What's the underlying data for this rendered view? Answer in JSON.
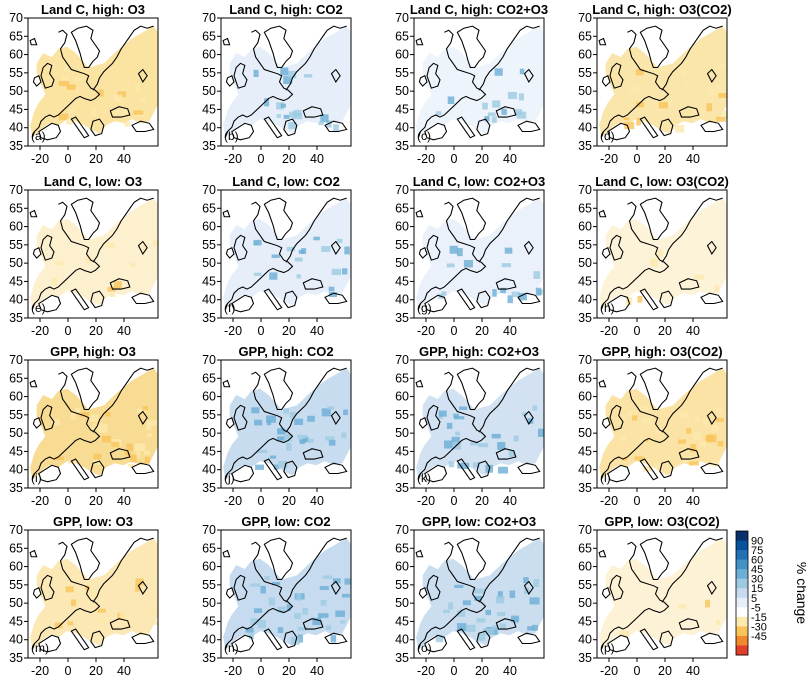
{
  "figure": {
    "panels": [
      {
        "title": "Land C, high: O3",
        "label": "(a)",
        "fill": "#fbe3a2",
        "intensity": 0.55
      },
      {
        "title": "Land C, high: CO2",
        "label": "(b)",
        "fill": "#e6eff9",
        "intensity": 0.45
      },
      {
        "title": "Land C, high: CO2+O3",
        "label": "(c)",
        "fill": "#eef4fb",
        "intensity": 0.35
      },
      {
        "title": "Land C, high: O3(CO2)",
        "label": "(d)",
        "fill": "#fae6aa",
        "intensity": 0.65
      },
      {
        "title": "Land C, low: O3",
        "label": "(e)",
        "fill": "#fcf0cf",
        "intensity": 0.25
      },
      {
        "title": "Land C, low: CO2",
        "label": "(f)",
        "fill": "#e6eff9",
        "intensity": 0.45
      },
      {
        "title": "Land C, low: CO2+O3",
        "label": "(g)",
        "fill": "#eaf1fa",
        "intensity": 0.4
      },
      {
        "title": "Land C, low: O3(CO2)",
        "label": "(h)",
        "fill": "#fdf3d9",
        "intensity": 0.15
      },
      {
        "title": "GPP, high: O3",
        "label": "(i)",
        "fill": "#f8dc94",
        "intensity": 0.8
      },
      {
        "title": "GPP, high: CO2",
        "label": "(j)",
        "fill": "#c8dcef",
        "intensity": 0.75
      },
      {
        "title": "GPP, high: CO2+O3",
        "label": "(k)",
        "fill": "#d2e2f2",
        "intensity": 0.65
      },
      {
        "title": "GPP, high: O3(CO2)",
        "label": "(l)",
        "fill": "#fae3a4",
        "intensity": 0.75
      },
      {
        "title": "GPP, low: O3",
        "label": "(m)",
        "fill": "#fbe8b4",
        "intensity": 0.45
      },
      {
        "title": "GPP, low: CO2",
        "label": "(n)",
        "fill": "#c6dbef",
        "intensity": 0.8
      },
      {
        "title": "GPP, low: CO2+O3",
        "label": "(o)",
        "fill": "#cadef0",
        "intensity": 0.75
      },
      {
        "title": "GPP, low: O3(CO2)",
        "label": "(p)",
        "fill": "#fdf2d6",
        "intensity": 0.1
      }
    ],
    "x_ticks": [
      "-20",
      "0",
      "20",
      "40"
    ],
    "y_ticks": [
      "35",
      "40",
      "45",
      "50",
      "55",
      "60",
      "65",
      "70"
    ],
    "colorbar": {
      "title": "% change",
      "labels": [
        "90",
        "75",
        "60",
        "45",
        "30",
        "15",
        "5",
        "-5",
        "-15",
        "-30",
        "-45"
      ],
      "colors": [
        "#08306b",
        "#08519c",
        "#2171b5",
        "#4292c6",
        "#6baed6",
        "#9ecae1",
        "#c6dbef",
        "#e6eff9",
        "#ffffff",
        "#fce9ad",
        "#f9c45a",
        "#f08a2c",
        "#e0402a"
      ]
    }
  }
}
